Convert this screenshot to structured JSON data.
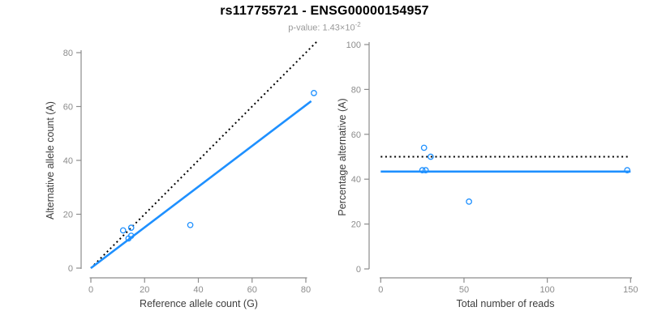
{
  "header": {
    "title": "rs117755721 - ENSG00000154957",
    "p_label": "p-value: 1.43×10",
    "p_exponent": "-2"
  },
  "colors": {
    "accent": "#1E90FF",
    "dotted_line": "#000000",
    "axis": "#8c8c8c",
    "tick_label": "#8c8c8c",
    "axis_title": "#3d3d3d",
    "title": "#000000",
    "subtitle": "#999999",
    "background": "#ffffff"
  },
  "chart_data": [
    {
      "type": "scatter",
      "panel": "left",
      "xlabel": "Reference allele count (G)",
      "ylabel": "Alternative allele count (A)",
      "xlim": [
        0,
        84
      ],
      "ylim": [
        0,
        84
      ],
      "xticks": [
        0,
        20,
        40,
        60,
        80
      ],
      "yticks": [
        0,
        20,
        40,
        60,
        80
      ],
      "grid": false,
      "legend": "none",
      "marker": "open-circle",
      "points": [
        [
          12,
          14
        ],
        [
          15,
          15
        ],
        [
          14,
          11
        ],
        [
          15,
          12
        ],
        [
          37,
          16
        ],
        [
          83,
          65
        ]
      ],
      "lines": [
        {
          "name": "identity",
          "style": "dotted",
          "color": "#000000",
          "x1": 0,
          "y1": 0,
          "x2": 84,
          "y2": 84
        },
        {
          "name": "fit",
          "style": "solid",
          "color": "#1E90FF",
          "x1": 0,
          "y1": 0,
          "x2": 82,
          "y2": 62
        }
      ]
    },
    {
      "type": "scatter",
      "panel": "right",
      "xlabel": "Total number of reads",
      "ylabel": "Percentage alternative (A)",
      "xlim": [
        0,
        150
      ],
      "ylim": [
        0,
        100
      ],
      "xticks": [
        0,
        50,
        100,
        150
      ],
      "yticks": [
        0,
        20,
        40,
        60,
        80,
        100
      ],
      "grid": false,
      "legend": "none",
      "marker": "open-circle",
      "points": [
        [
          26,
          54
        ],
        [
          30,
          50
        ],
        [
          25,
          44
        ],
        [
          27,
          44
        ],
        [
          53,
          30
        ],
        [
          148,
          44
        ]
      ],
      "lines": [
        {
          "name": "expected-50pct",
          "style": "dotted",
          "color": "#000000",
          "x1": 0,
          "y1": 50,
          "x2": 150,
          "y2": 50
        },
        {
          "name": "fit",
          "style": "solid",
          "color": "#1E90FF",
          "x1": 0,
          "y1": 43.4,
          "x2": 150,
          "y2": 43.4
        }
      ]
    }
  ]
}
